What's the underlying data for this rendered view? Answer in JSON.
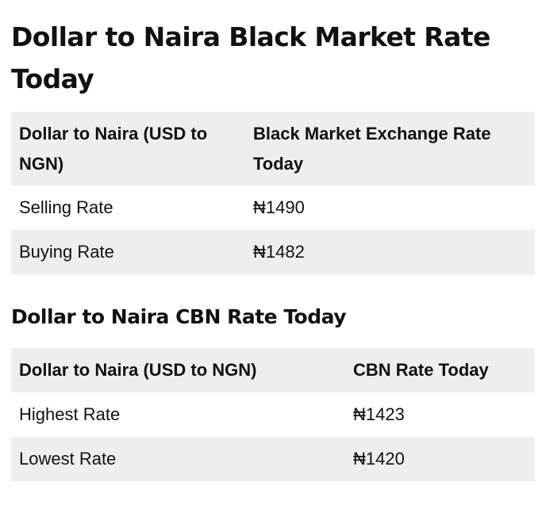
{
  "black_market": {
    "title": "Dollar to Naira Black Market Rate Today",
    "table": {
      "headers": [
        "Dollar to Naira (USD to NGN)",
        "Black Market Exchange Rate Today"
      ],
      "rows": [
        [
          "Selling Rate",
          "₦1490"
        ],
        [
          "Buying Rate",
          "₦1482"
        ]
      ]
    }
  },
  "cbn": {
    "title": "Dollar to Naira CBN Rate Today",
    "table": {
      "headers": [
        "Dollar to Naira (USD to NGN)",
        "CBN Rate Today"
      ],
      "rows": [
        [
          "Highest Rate",
          "₦1423"
        ],
        [
          "Lowest Rate",
          "₦1420"
        ]
      ]
    }
  }
}
